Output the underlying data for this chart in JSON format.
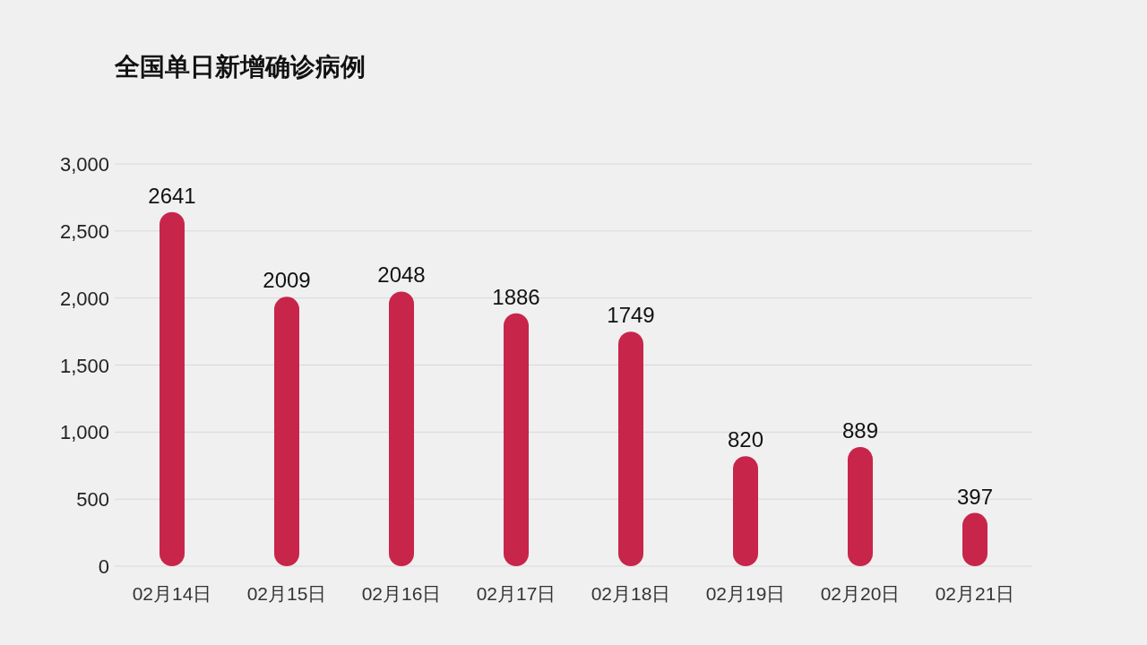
{
  "chart_data": {
    "type": "bar",
    "title": "全国单日新增确诊病例",
    "categories": [
      "02月14日",
      "02月15日",
      "02月16日",
      "02月17日",
      "02月18日",
      "02月19日",
      "02月20日",
      "02月21日"
    ],
    "values": [
      2641,
      2009,
      2048,
      1886,
      1749,
      820,
      889,
      397
    ],
    "color": "#c8254a",
    "ylim": [
      0,
      3000
    ],
    "yticks": [
      0,
      500,
      {
        "value": 1000,
        "label": "1,000"
      },
      {
        "value": 1500,
        "label": "1,500"
      },
      {
        "value": 2000,
        "label": "2,000"
      },
      {
        "value": 2500,
        "label": "2,500"
      },
      {
        "value": 3000,
        "label": "3,000"
      }
    ],
    "grid": "y",
    "data_labels": true
  }
}
